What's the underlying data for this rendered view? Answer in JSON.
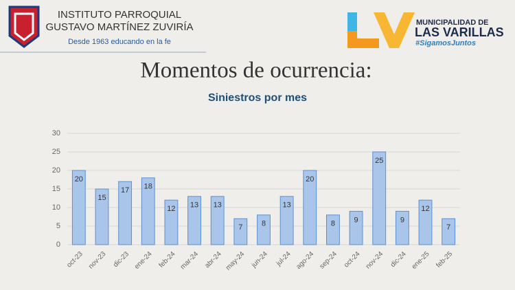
{
  "header": {
    "school_line1": "INSTITUTO PARROQUIAL",
    "school_line2": "GUSTAVO MARTÍNEZ ZUVIRÍA",
    "school_motto": "Desde 1963 educando en la fe",
    "muni_line1": "MUNICIPALIDAD DE",
    "muni_line2": "LAS VARILLAS",
    "muni_tag": "#SigamosJuntos"
  },
  "slide_title": "Momentos de ocurrencia:",
  "chart_data": {
    "type": "bar",
    "title": "Siniestros por mes",
    "categories": [
      "oct-23",
      "nov-23",
      "dic-23",
      "ene-24",
      "feb-24",
      "mar-24",
      "abr-24",
      "may-24",
      "jun-24",
      "jul-24",
      "ago-24",
      "sep-24",
      "oct-24",
      "nov-24",
      "dic-24",
      "ene-25",
      "feb-25"
    ],
    "values": [
      20,
      15,
      17,
      18,
      12,
      13,
      13,
      7,
      8,
      13,
      20,
      8,
      9,
      25,
      9,
      12,
      7
    ],
    "color": "#a9c6ea",
    "ylim": [
      0,
      30
    ],
    "yticks": [
      0,
      5,
      10,
      15,
      20,
      25,
      30
    ],
    "grid": true
  }
}
